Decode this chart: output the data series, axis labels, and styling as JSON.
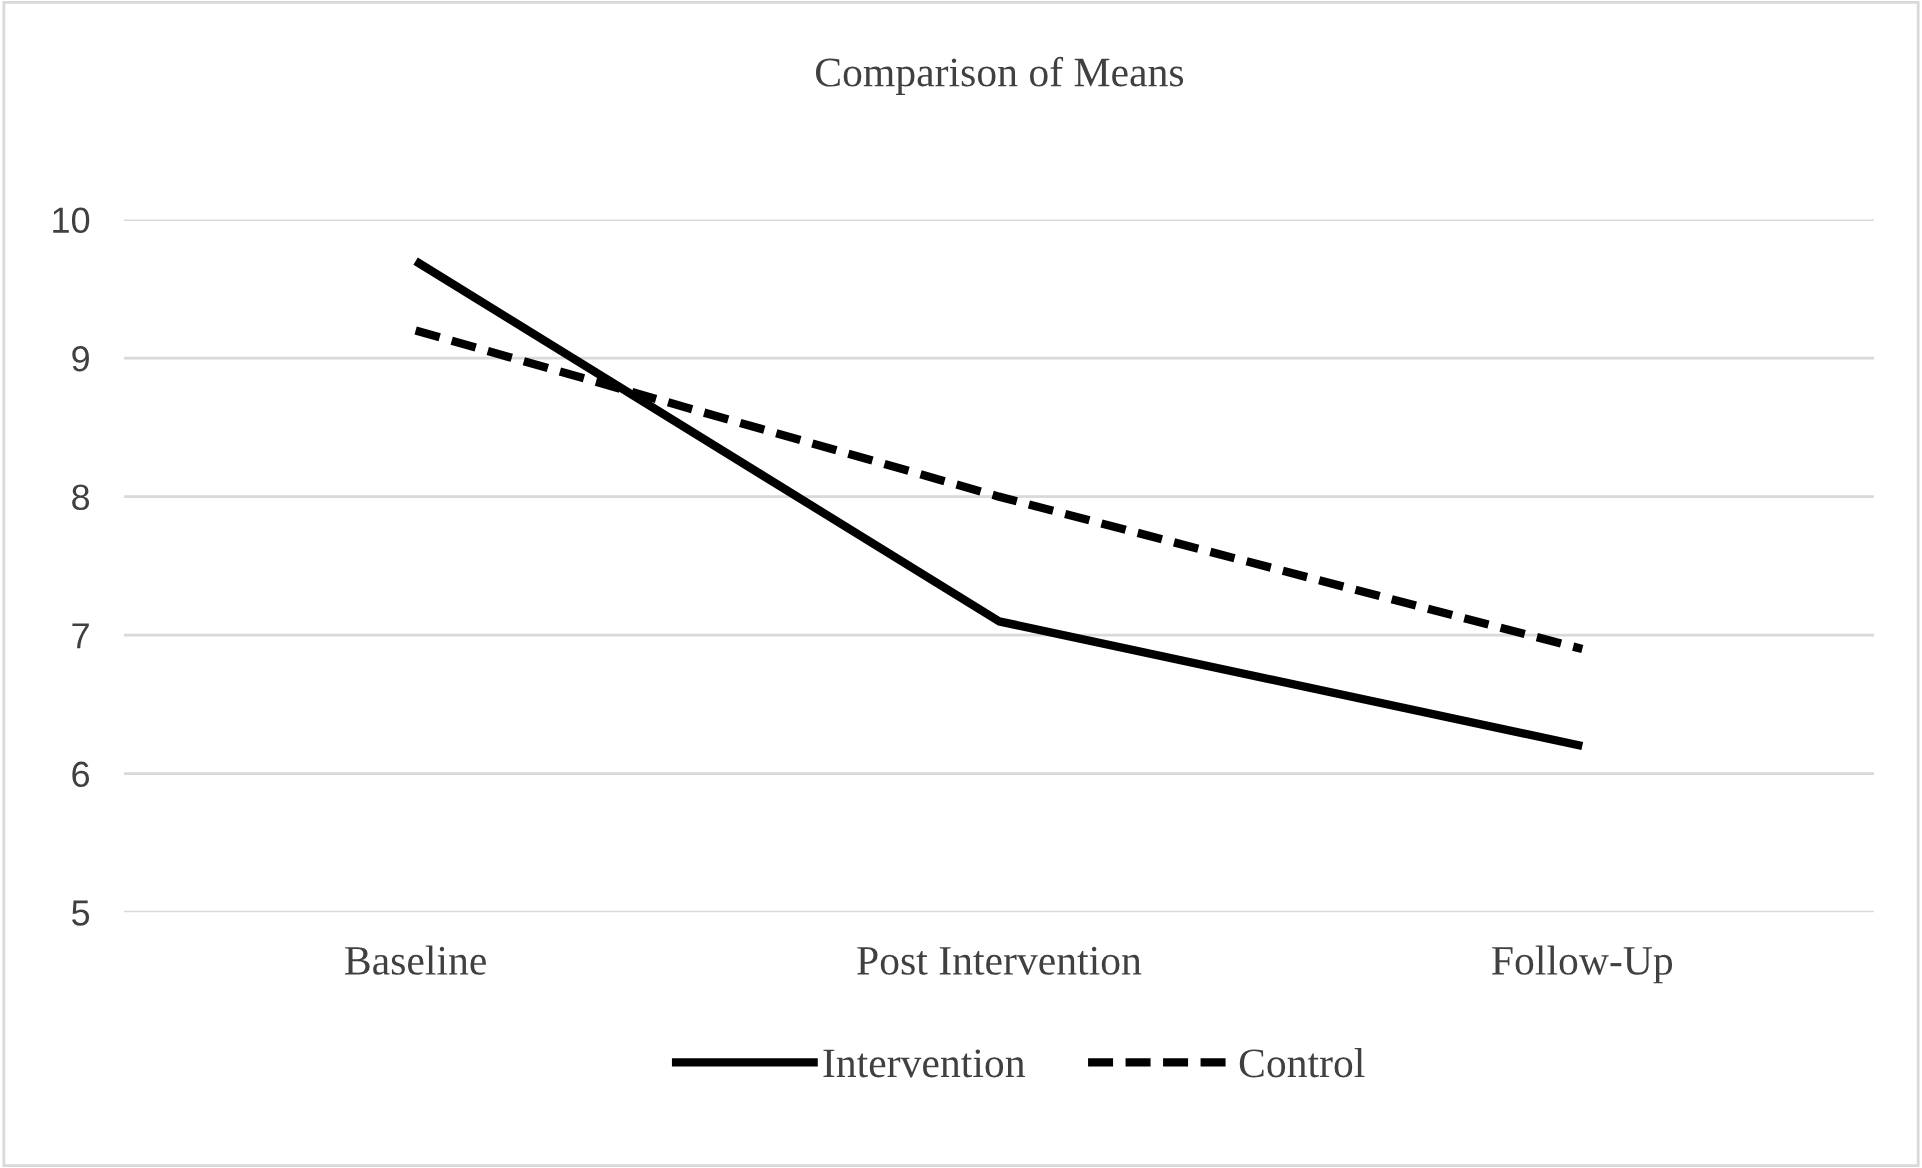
{
  "chart_data": {
    "type": "line",
    "title": "Comparison of Means",
    "categories": [
      "Baseline",
      "Post Intervention",
      "Follow-Up"
    ],
    "series": [
      {
        "name": "Intervention",
        "color": "#000000",
        "values": [
          9.7,
          7.1,
          6.2
        ],
        "line_style": "solid"
      },
      {
        "name": "Control",
        "color": "#000000",
        "values": [
          9.2,
          8.0,
          6.9
        ],
        "line_style": "dashed"
      }
    ],
    "ylim": [
      5,
      10
    ],
    "yticks": [
      5,
      6,
      7,
      8,
      9,
      10
    ],
    "grid": "y",
    "legend": "bottom",
    "marker": "none"
  }
}
